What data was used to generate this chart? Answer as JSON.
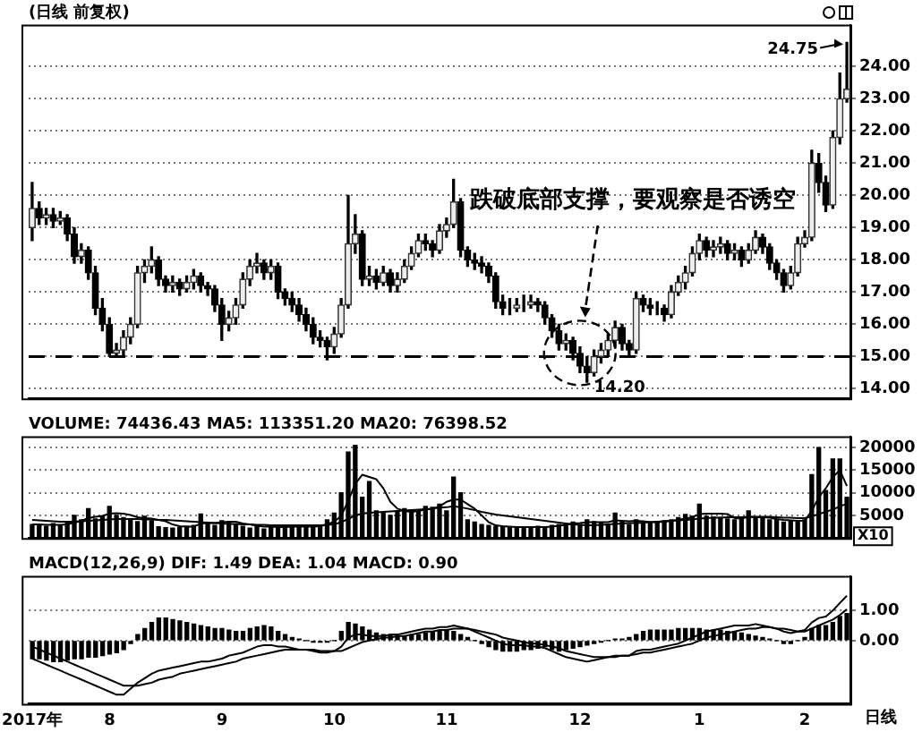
{
  "chart_data": [
    {
      "type": "candlestick",
      "title": "(日线 前复权)",
      "categories": [
        null,
        null,
        null,
        null,
        null,
        null,
        null,
        null,
        null,
        null,
        null,
        null,
        null,
        null,
        null,
        null,
        null,
        null,
        null,
        null,
        null,
        null,
        null,
        null,
        null,
        null,
        null,
        null,
        null,
        null,
        null,
        null,
        null,
        null,
        null,
        null,
        null,
        null,
        null,
        null,
        null,
        null,
        null,
        null,
        null,
        null,
        null,
        null,
        null,
        null,
        null,
        null,
        null,
        null,
        null,
        null,
        null,
        null,
        null,
        null,
        null,
        null,
        null,
        null,
        null,
        null,
        null,
        null,
        null,
        null,
        null,
        null,
        null,
        null,
        null,
        null,
        null,
        null,
        null,
        null,
        null,
        null,
        null,
        null,
        null,
        null,
        null,
        null,
        null,
        null,
        null,
        null,
        null,
        null,
        null,
        null,
        null,
        null,
        null,
        null,
        null,
        null,
        null,
        null,
        null,
        null,
        null,
        null,
        null,
        null,
        null,
        null,
        null,
        null,
        null,
        null,
        null
      ],
      "ohlc": [
        [
          19.0,
          20.4,
          18.6,
          19.6
        ],
        [
          19.6,
          19.8,
          19.1,
          19.3
        ],
        [
          19.3,
          19.6,
          19.1,
          19.4
        ],
        [
          19.4,
          19.6,
          19.0,
          19.2
        ],
        [
          19.2,
          19.5,
          19.1,
          19.3
        ],
        [
          19.3,
          19.4,
          18.6,
          18.8
        ],
        [
          18.8,
          19.0,
          17.9,
          18.1
        ],
        [
          18.1,
          18.5,
          17.9,
          18.3
        ],
        [
          18.3,
          18.4,
          17.4,
          17.6
        ],
        [
          17.6,
          17.8,
          16.3,
          16.5
        ],
        [
          16.5,
          16.8,
          15.8,
          16.0
        ],
        [
          16.0,
          16.2,
          15.0,
          15.1
        ],
        [
          15.1,
          15.4,
          15.0,
          15.2
        ],
        [
          15.2,
          15.8,
          15.0,
          15.6
        ],
        [
          15.6,
          16.2,
          15.4,
          16.0
        ],
        [
          16.0,
          17.8,
          15.9,
          17.6
        ],
        [
          17.6,
          18.0,
          17.3,
          17.8
        ],
        [
          17.8,
          18.4,
          17.6,
          18.0
        ],
        [
          18.0,
          18.1,
          17.2,
          17.4
        ],
        [
          17.4,
          17.5,
          17.0,
          17.2
        ],
        [
          17.2,
          17.5,
          17.0,
          17.3
        ],
        [
          17.3,
          17.4,
          16.9,
          17.1
        ],
        [
          17.1,
          17.5,
          17.0,
          17.3
        ],
        [
          17.3,
          17.7,
          17.1,
          17.5
        ],
        [
          17.5,
          17.6,
          17.0,
          17.2
        ],
        [
          17.2,
          17.3,
          16.9,
          17.1
        ],
        [
          17.1,
          17.2,
          16.4,
          16.6
        ],
        [
          16.6,
          16.8,
          15.5,
          16.0
        ],
        [
          16.0,
          16.4,
          15.8,
          16.2
        ],
        [
          16.2,
          16.8,
          16.0,
          16.6
        ],
        [
          16.6,
          17.6,
          16.5,
          17.4
        ],
        [
          17.4,
          18.0,
          17.2,
          17.8
        ],
        [
          17.8,
          18.2,
          17.6,
          17.9
        ],
        [
          17.9,
          18.0,
          17.4,
          17.6
        ],
        [
          17.6,
          18.0,
          17.4,
          17.8
        ],
        [
          17.8,
          17.9,
          16.8,
          17.0
        ],
        [
          17.0,
          17.1,
          16.6,
          16.8
        ],
        [
          16.8,
          17.0,
          16.4,
          16.6
        ],
        [
          16.6,
          16.8,
          16.1,
          16.3
        ],
        [
          16.3,
          16.5,
          15.8,
          16.0
        ],
        [
          16.0,
          16.2,
          15.4,
          15.6
        ],
        [
          15.6,
          15.8,
          15.3,
          15.5
        ],
        [
          15.5,
          15.6,
          14.9,
          15.3
        ],
        [
          15.3,
          15.9,
          15.1,
          15.7
        ],
        [
          15.7,
          16.8,
          15.6,
          16.6
        ],
        [
          16.6,
          20.0,
          16.5,
          18.5
        ],
        [
          18.5,
          19.4,
          18.2,
          18.8
        ],
        [
          18.8,
          18.9,
          17.2,
          17.4
        ],
        [
          17.4,
          17.8,
          17.2,
          17.5
        ],
        [
          17.5,
          17.7,
          17.1,
          17.3
        ],
        [
          17.3,
          17.8,
          17.2,
          17.6
        ],
        [
          17.6,
          17.7,
          17.0,
          17.2
        ],
        [
          17.2,
          17.6,
          17.0,
          17.4
        ],
        [
          17.4,
          18.0,
          17.3,
          17.8
        ],
        [
          17.8,
          18.4,
          17.7,
          18.2
        ],
        [
          18.2,
          18.8,
          18.1,
          18.6
        ],
        [
          18.6,
          18.8,
          18.3,
          18.5
        ],
        [
          18.5,
          18.6,
          18.1,
          18.3
        ],
        [
          18.3,
          19.1,
          18.2,
          18.9
        ],
        [
          18.9,
          19.3,
          18.7,
          19.1
        ],
        [
          19.1,
          20.5,
          19.0,
          19.8
        ],
        [
          19.8,
          19.9,
          18.1,
          18.3
        ],
        [
          18.3,
          18.4,
          17.8,
          18.0
        ],
        [
          18.0,
          18.2,
          17.7,
          17.9
        ],
        [
          17.9,
          18.1,
          17.6,
          17.8
        ],
        [
          17.8,
          17.9,
          17.3,
          17.5
        ],
        [
          17.5,
          17.6,
          16.5,
          16.7
        ],
        [
          16.7,
          16.9,
          16.3,
          16.5
        ],
        [
          16.5,
          16.8,
          16.3,
          16.5
        ],
        [
          16.5,
          16.8,
          16.4,
          16.6
        ],
        [
          16.6,
          16.9,
          16.4,
          16.6
        ],
        [
          16.6,
          16.9,
          16.5,
          16.7
        ],
        [
          16.7,
          16.8,
          16.4,
          16.6
        ],
        [
          16.6,
          16.7,
          16.0,
          16.2
        ],
        [
          16.2,
          16.3,
          15.6,
          15.8
        ],
        [
          15.8,
          16.0,
          15.2,
          15.4
        ],
        [
          15.4,
          15.7,
          15.2,
          15.5
        ],
        [
          15.5,
          15.6,
          14.9,
          15.1
        ],
        [
          15.1,
          15.3,
          14.5,
          14.7
        ],
        [
          14.7,
          15.0,
          14.2,
          14.5
        ],
        [
          14.5,
          15.2,
          14.4,
          15.0
        ],
        [
          15.0,
          15.4,
          14.8,
          15.2
        ],
        [
          15.2,
          15.7,
          15.0,
          15.5
        ],
        [
          15.5,
          16.1,
          15.3,
          15.9
        ],
        [
          15.9,
          16.0,
          15.2,
          15.4
        ],
        [
          15.4,
          15.5,
          15.0,
          15.2
        ],
        [
          15.2,
          17.0,
          15.1,
          16.8
        ],
        [
          16.8,
          16.9,
          16.4,
          16.6
        ],
        [
          16.6,
          16.8,
          16.3,
          16.5
        ],
        [
          16.5,
          16.7,
          16.3,
          16.5
        ],
        [
          16.5,
          16.6,
          16.1,
          16.3
        ],
        [
          16.3,
          17.2,
          16.2,
          17.0
        ],
        [
          17.0,
          17.5,
          16.9,
          17.3
        ],
        [
          17.3,
          17.8,
          17.1,
          17.6
        ],
        [
          17.6,
          18.4,
          17.5,
          18.2
        ],
        [
          18.2,
          18.8,
          18.0,
          18.6
        ],
        [
          18.6,
          18.7,
          18.1,
          18.3
        ],
        [
          18.3,
          18.6,
          18.1,
          18.4
        ],
        [
          18.4,
          18.7,
          18.2,
          18.5
        ],
        [
          18.5,
          18.6,
          18.0,
          18.2
        ],
        [
          18.2,
          18.5,
          18.0,
          18.3
        ],
        [
          18.3,
          18.4,
          17.8,
          18.0
        ],
        [
          18.0,
          18.5,
          17.9,
          18.3
        ],
        [
          18.3,
          18.9,
          18.2,
          18.7
        ],
        [
          18.7,
          18.8,
          18.2,
          18.4
        ],
        [
          18.4,
          18.5,
          17.7,
          17.9
        ],
        [
          17.9,
          18.0,
          17.4,
          17.6
        ],
        [
          17.6,
          17.7,
          17.0,
          17.2
        ],
        [
          17.2,
          17.8,
          17.1,
          17.6
        ],
        [
          17.6,
          18.7,
          17.5,
          18.5
        ],
        [
          18.5,
          18.9,
          18.4,
          18.7
        ],
        [
          18.7,
          21.4,
          18.6,
          21.0
        ],
        [
          21.0,
          21.3,
          20.1,
          20.4
        ],
        [
          20.4,
          20.6,
          19.5,
          19.7
        ],
        [
          19.7,
          22.0,
          19.6,
          21.8
        ],
        [
          21.8,
          23.8,
          21.6,
          23.0
        ],
        [
          23.0,
          24.75,
          22.9,
          23.3
        ]
      ],
      "ylim": [
        13.7,
        25.3
      ],
      "yticks": [
        {
          "value": 14,
          "label": "14.00"
        },
        {
          "value": 15,
          "label": "15.00"
        },
        {
          "value": 16,
          "label": "16.00"
        },
        {
          "value": 17,
          "label": "17.00"
        },
        {
          "value": 18,
          "label": "18.00"
        },
        {
          "value": 19,
          "label": "19.00"
        },
        {
          "value": 20,
          "label": "20.00"
        },
        {
          "value": 21,
          "label": "21.00"
        },
        {
          "value": 22,
          "label": "22.00"
        },
        {
          "value": 23,
          "label": "23.00"
        },
        {
          "value": 24,
          "label": "24.00"
        }
      ],
      "ref_lines": [
        {
          "axis": "y",
          "value": 15,
          "line_style": "dashed",
          "color": "#000000"
        }
      ],
      "annotations": [
        "跌破底部支撑，要观察是否诱空",
        "14.20",
        "24.75"
      ],
      "grid": "y",
      "legend": false,
      "tick_labels": "y"
    },
    {
      "type": "bar",
      "title": "VOLUME: 74436.43 MA5: 113351.20 MA20: 76398.52",
      "categories": [
        null,
        null,
        null,
        null,
        null,
        null,
        null,
        null,
        null,
        null,
        null,
        null,
        null,
        null,
        null,
        null,
        null,
        null,
        null,
        null,
        null,
        null,
        null,
        null,
        null,
        null,
        null,
        null,
        null,
        null,
        null,
        null,
        null,
        null,
        null,
        null,
        null,
        null,
        null,
        null,
        null,
        null,
        null,
        null,
        null,
        null,
        null,
        null,
        null,
        null,
        null,
        null,
        null,
        null,
        null,
        null,
        null,
        null,
        null,
        null,
        null,
        null,
        null,
        null,
        null,
        null,
        null,
        null,
        null,
        null,
        null,
        null,
        null,
        null,
        null,
        null,
        null,
        null,
        null,
        null,
        null,
        null,
        null,
        null,
        null,
        null,
        null,
        null,
        null,
        null,
        null,
        null,
        null,
        null,
        null,
        null,
        null,
        null,
        null,
        null,
        null,
        null,
        null,
        null,
        null,
        null,
        null,
        null,
        null,
        null,
        null,
        null,
        null,
        null,
        null,
        null,
        null
      ],
      "series": [
        {
          "type": "bar",
          "color": "#000000",
          "values": [
            3000,
            2800,
            2600,
            3200,
            2900,
            3500,
            5000,
            4000,
            6500,
            4200,
            4800,
            7000,
            5000,
            4500,
            4000,
            3600,
            4800,
            3800,
            2500,
            2300,
            2200,
            2400,
            2600,
            2800,
            5300,
            3200,
            2800,
            3800,
            3400,
            3000,
            2600,
            2200,
            2500,
            2000,
            2400,
            2600,
            2700,
            2500,
            2400,
            2500,
            2600,
            2600,
            4000,
            5500,
            10000,
            19000,
            20500,
            9000,
            12500,
            6000,
            5500,
            5000,
            6000,
            6500,
            6200,
            6000,
            7000,
            6800,
            7500,
            6000,
            13500,
            10000,
            4000,
            3500,
            3000,
            2800,
            2600,
            2500,
            2400,
            2300,
            2200,
            2400,
            2600,
            2500,
            2800,
            3000,
            3200,
            3500,
            3000,
            4000,
            3600,
            3300,
            3000,
            5500,
            3500,
            3000,
            4000,
            3300,
            3500,
            3600,
            3800,
            4000,
            4500,
            5200,
            4800,
            7500,
            4800,
            4600,
            4500,
            4200,
            4000,
            4200,
            6000,
            4500,
            4300,
            4000,
            4100,
            3500,
            3800,
            3500,
            4000,
            14000,
            20000,
            10500,
            17500,
            17500,
            9000
          ]
        },
        {
          "type": "line",
          "color": "#000000",
          "values": [
            3000,
            3000,
            2900,
            2900,
            2900,
            3000,
            3400,
            3800,
            4400,
            4700,
            4900,
            5400,
            5500,
            5400,
            5100,
            4600,
            4400,
            4300,
            4000,
            3700,
            3000,
            2600,
            2500,
            2500,
            3200,
            3300,
            3300,
            3500,
            3600,
            3600,
            3200,
            3000,
            2700,
            2500,
            2500,
            2400,
            2400,
            2500,
            2500,
            2500,
            2500,
            2600,
            3000,
            3600,
            4900,
            8200,
            12000,
            14000,
            13500,
            13000,
            11000,
            8000,
            6500,
            6000,
            5800,
            6000,
            6300,
            6500,
            7000,
            8000,
            8500,
            8500,
            7500,
            6500,
            5000,
            3500,
            2800,
            2600,
            2500,
            2400,
            2400,
            2400,
            2400,
            2400,
            2500,
            2700,
            2900,
            3200,
            3300,
            3500,
            3500,
            3500,
            3500,
            3900,
            3800,
            3700,
            3800,
            3700,
            3500,
            3500,
            3600,
            3800,
            4000,
            4300,
            4600,
            5300,
            5400,
            5400,
            5400,
            5300,
            4400,
            4300,
            4700,
            4600,
            4600,
            4500,
            4200,
            4000,
            3900,
            3800,
            3800,
            6000,
            9000,
            11000,
            13500,
            15000,
            11500
          ]
        },
        {
          "type": "line",
          "color": "#000000",
          "values": [
            4000,
            3900,
            3800,
            3700,
            3600,
            3600,
            3600,
            3700,
            3800,
            3900,
            4000,
            4100,
            4200,
            4200,
            4200,
            4200,
            4100,
            4100,
            4000,
            4000,
            3900,
            3800,
            3700,
            3600,
            3500,
            3400,
            3300,
            3200,
            3100,
            3100,
            3000,
            3000,
            2900,
            2900,
            2800,
            2800,
            2800,
            2800,
            2800,
            2800,
            2800,
            2800,
            2900,
            3000,
            3500,
            4200,
            5000,
            5400,
            5600,
            5700,
            5800,
            5900,
            6000,
            6100,
            6200,
            6300,
            6400,
            6500,
            6700,
            6800,
            7000,
            6800,
            6500,
            6200,
            5800,
            5500,
            5200,
            5000,
            4800,
            4600,
            4400,
            4200,
            4000,
            3800,
            3600,
            3400,
            3200,
            3000,
            2900,
            2800,
            2800,
            2900,
            3000,
            3100,
            3200,
            3300,
            3300,
            3400,
            3500,
            3600,
            3700,
            3800,
            3900,
            4000,
            4100,
            4300,
            4400,
            4500,
            4500,
            4600,
            4600,
            4600,
            4700,
            4700,
            4700,
            4700,
            4600,
            4500,
            4500,
            4400,
            4400,
            4800,
            5300,
            5800,
            6300,
            7000,
            7600
          ]
        }
      ],
      "ylim": [
        0,
        22500
      ],
      "yticks": [
        5000,
        10000,
        15000,
        20000
      ],
      "annotations": [
        "X10"
      ],
      "grid": "y",
      "legend": false,
      "tick_labels": "y",
      "marker": "none"
    },
    {
      "type": "bar",
      "title": "MACD(12,26,9) DIF: 1.49 DEA: 1.04 MACD: 0.90",
      "categories": [
        "2017年",
        null,
        null,
        null,
        null,
        null,
        null,
        null,
        null,
        null,
        null,
        "8",
        null,
        null,
        null,
        null,
        null,
        null,
        null,
        null,
        null,
        null,
        null,
        null,
        null,
        null,
        null,
        "9",
        null,
        null,
        null,
        null,
        null,
        null,
        null,
        null,
        null,
        null,
        null,
        null,
        null,
        null,
        null,
        "10",
        null,
        null,
        null,
        null,
        null,
        null,
        null,
        null,
        null,
        null,
        null,
        null,
        null,
        null,
        null,
        "11",
        null,
        null,
        null,
        null,
        null,
        null,
        null,
        null,
        null,
        null,
        null,
        null,
        null,
        null,
        null,
        null,
        null,
        null,
        "12",
        null,
        null,
        null,
        null,
        null,
        null,
        null,
        null,
        null,
        null,
        null,
        null,
        null,
        null,
        null,
        null,
        "1",
        null,
        null,
        null,
        null,
        null,
        null,
        null,
        null,
        null,
        null,
        null,
        null,
        null,
        null,
        "2",
        null,
        null,
        null,
        null,
        null,
        null
      ],
      "series": [
        {
          "type": "bar",
          "color": "#000000",
          "values": [
            -0.6,
            -0.6,
            -0.65,
            -0.7,
            -0.7,
            -0.65,
            -0.6,
            -0.6,
            -0.55,
            -0.55,
            -0.5,
            -0.45,
            -0.4,
            -0.3,
            -0.1,
            0.2,
            0.4,
            0.6,
            0.75,
            0.75,
            0.7,
            0.65,
            0.6,
            0.55,
            0.5,
            0.45,
            0.4,
            0.4,
            0.35,
            0.3,
            0.3,
            0.4,
            0.45,
            0.5,
            0.45,
            0.3,
            0.2,
            0.1,
            0.05,
            0,
            -0.05,
            -0.05,
            -0.05,
            0,
            0.3,
            0.6,
            0.55,
            0.45,
            0.35,
            0.25,
            0.2,
            0.2,
            0.15,
            0.15,
            0.2,
            0.2,
            0.25,
            0.3,
            0.3,
            0.35,
            0.3,
            0.2,
            0.1,
            0,
            -0.1,
            -0.2,
            -0.3,
            -0.35,
            -0.35,
            -0.35,
            -0.3,
            -0.3,
            -0.25,
            -0.2,
            -0.3,
            -0.35,
            -0.3,
            -0.25,
            -0.2,
            -0.15,
            -0.1,
            -0.05,
            0,
            0.05,
            0.05,
            0.1,
            0.2,
            0.3,
            0.35,
            0.35,
            0.35,
            0.35,
            0.4,
            0.4,
            0.4,
            0.4,
            0.35,
            0.35,
            0.35,
            0.3,
            0.3,
            0.25,
            0.2,
            0.15,
            0.1,
            0.05,
            0,
            -0.1,
            -0.1,
            0,
            0.1,
            0.4,
            0.5,
            0.5,
            0.6,
            0.8,
            0.9
          ]
        },
        {
          "type": "line",
          "color": "#000000",
          "values": [
            -0.6,
            -0.7,
            -0.8,
            -0.9,
            -1.0,
            -1.1,
            -1.2,
            -1.3,
            -1.4,
            -1.5,
            -1.6,
            -1.7,
            -1.8,
            -1.8,
            -1.6,
            -1.4,
            -1.25,
            -1.1,
            -1.0,
            -0.95,
            -0.9,
            -0.85,
            -0.8,
            -0.75,
            -0.7,
            -0.7,
            -0.65,
            -0.6,
            -0.5,
            -0.45,
            -0.4,
            -0.3,
            -0.2,
            -0.15,
            -0.15,
            -0.2,
            -0.2,
            -0.25,
            -0.3,
            -0.3,
            -0.35,
            -0.4,
            -0.4,
            -0.35,
            -0.2,
            0.1,
            0.2,
            0.2,
            0.15,
            0.15,
            0.15,
            0.2,
            0.2,
            0.25,
            0.3,
            0.35,
            0.4,
            0.4,
            0.45,
            0.45,
            0.5,
            0.45,
            0.4,
            0.3,
            0.2,
            0.1,
            0,
            -0.1,
            -0.15,
            -0.15,
            -0.15,
            -0.2,
            -0.2,
            -0.25,
            -0.35,
            -0.45,
            -0.55,
            -0.6,
            -0.65,
            -0.7,
            -0.65,
            -0.6,
            -0.55,
            -0.5,
            -0.5,
            -0.5,
            -0.35,
            -0.3,
            -0.3,
            -0.25,
            -0.2,
            -0.15,
            -0.1,
            0,
            0.1,
            0.2,
            0.3,
            0.35,
            0.4,
            0.45,
            0.5,
            0.5,
            0.5,
            0.55,
            0.5,
            0.45,
            0.4,
            0.3,
            0.25,
            0.3,
            0.35,
            0.6,
            0.75,
            0.8,
            1.0,
            1.25,
            1.49
          ]
        },
        {
          "type": "line",
          "color": "#000000",
          "values": [
            -0.2,
            -0.3,
            -0.4,
            -0.5,
            -0.6,
            -0.7,
            -0.8,
            -0.9,
            -1.0,
            -1.1,
            -1.2,
            -1.3,
            -1.4,
            -1.5,
            -1.5,
            -1.5,
            -1.45,
            -1.4,
            -1.3,
            -1.25,
            -1.2,
            -1.1,
            -1.05,
            -1.0,
            -0.95,
            -0.9,
            -0.85,
            -0.8,
            -0.75,
            -0.7,
            -0.6,
            -0.55,
            -0.5,
            -0.45,
            -0.4,
            -0.35,
            -0.3,
            -0.3,
            -0.3,
            -0.3,
            -0.3,
            -0.35,
            -0.35,
            -0.35,
            -0.35,
            -0.25,
            -0.15,
            -0.05,
            0,
            0.05,
            0.1,
            0.1,
            0.15,
            0.15,
            0.2,
            0.25,
            0.3,
            0.3,
            0.35,
            0.35,
            0.4,
            0.4,
            0.4,
            0.35,
            0.3,
            0.25,
            0.2,
            0.1,
            0.05,
            0,
            -0.05,
            -0.1,
            -0.1,
            -0.15,
            -0.2,
            -0.25,
            -0.35,
            -0.4,
            -0.45,
            -0.5,
            -0.55,
            -0.55,
            -0.55,
            -0.55,
            -0.5,
            -0.5,
            -0.45,
            -0.4,
            -0.4,
            -0.35,
            -0.3,
            -0.25,
            -0.2,
            -0.15,
            -0.1,
            0,
            0.1,
            0.15,
            0.2,
            0.25,
            0.3,
            0.35,
            0.4,
            0.4,
            0.45,
            0.45,
            0.4,
            0.4,
            0.35,
            0.3,
            0.3,
            0.4,
            0.5,
            0.6,
            0.7,
            0.85,
            1.04
          ]
        }
      ],
      "ylim": [
        -2.1,
        2.15
      ],
      "yticks": [
        {
          "value": 0,
          "label": "0.00"
        },
        {
          "value": 1,
          "label": "1.00"
        }
      ],
      "annotations": [
        "日线"
      ],
      "grid": "y",
      "legend": false,
      "marker": "none"
    }
  ]
}
